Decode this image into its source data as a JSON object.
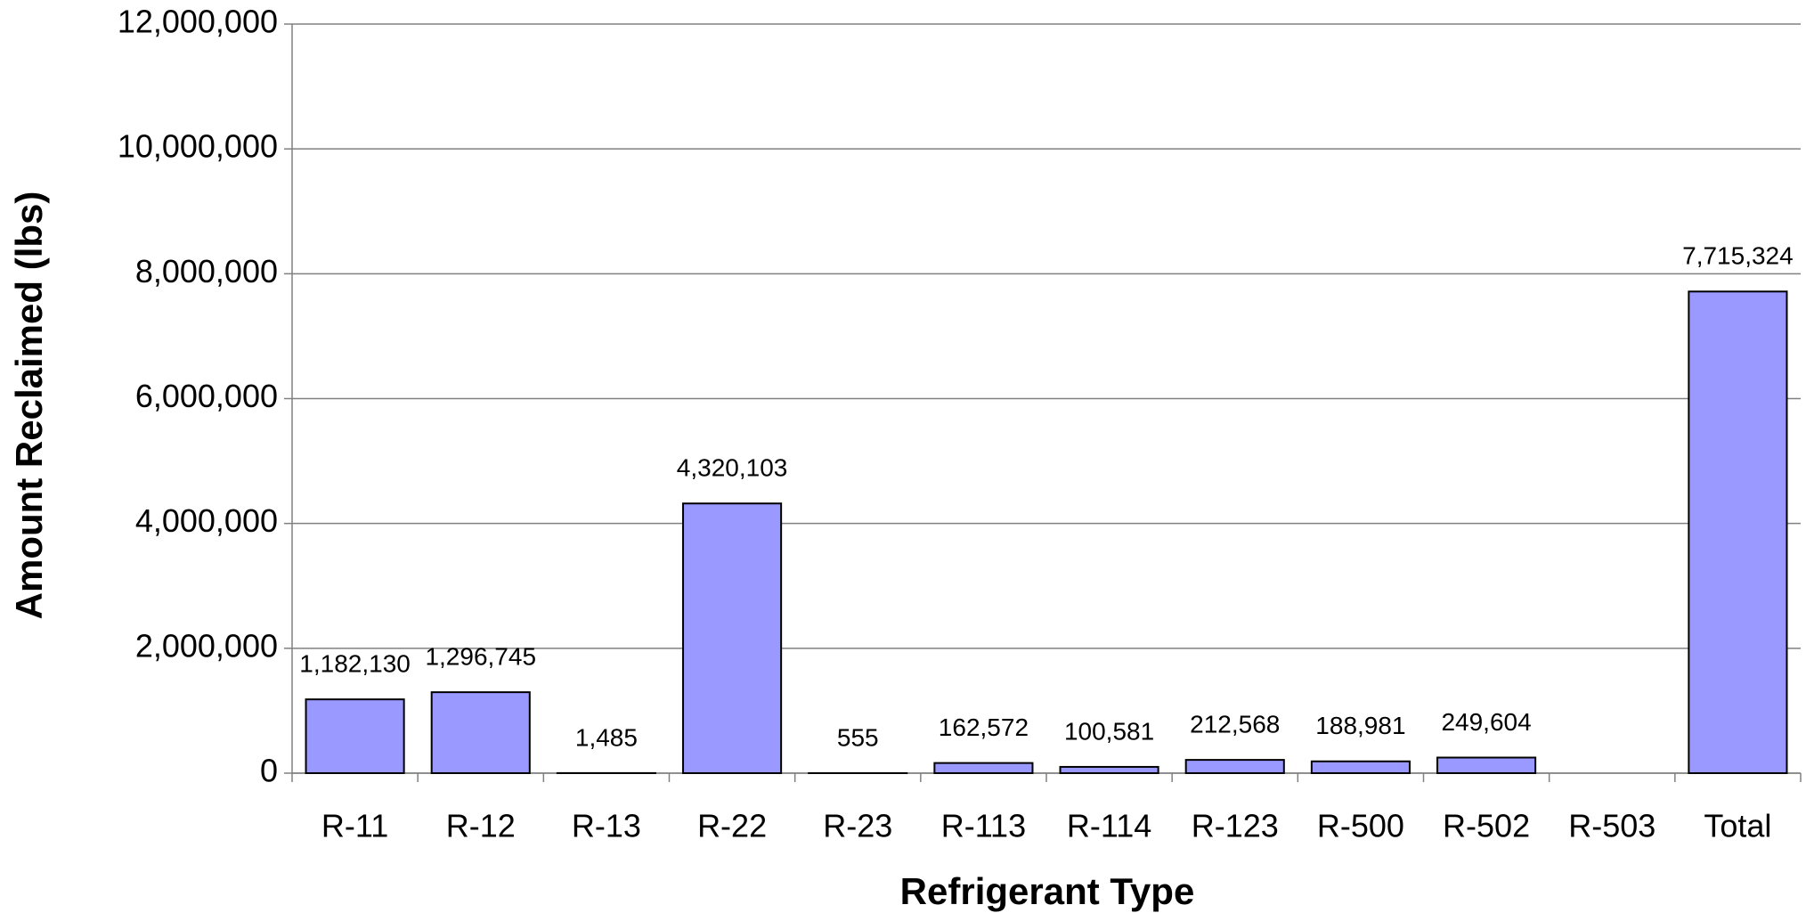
{
  "chart_data": {
    "type": "bar",
    "x_label": "Refrigerant Type",
    "y_label": "Amount Reclaimed (lbs)",
    "categories": [
      "R-11",
      "R-12",
      "R-13",
      "R-22",
      "R-23",
      "R-113",
      "R-114",
      "R-123",
      "R-500",
      "R-502",
      "R-503",
      "Total"
    ],
    "values": [
      1182130,
      1296745,
      1485,
      4320103,
      555,
      162572,
      100581,
      212568,
      188981,
      249604,
      null,
      7715324
    ],
    "value_labels": [
      "1,182,130",
      "1,296,745",
      "1,485",
      "4,320,103",
      "555",
      "162,572",
      "100,581",
      "212,568",
      "188,981",
      "249,604",
      null,
      "7,715,324"
    ],
    "color": "#9999ff",
    "ylim": [
      0,
      12000000
    ],
    "yticks": [
      0,
      {
        "value": 2000000,
        "label": "2,000,000"
      },
      {
        "value": 4000000,
        "label": "4,000,000"
      },
      {
        "value": 6000000,
        "label": "6,000,000"
      },
      {
        "value": 8000000,
        "label": "8,000,000"
      },
      {
        "value": 10000000,
        "label": "10,000,000"
      },
      {
        "value": 12000000,
        "label": "12,000,000"
      }
    ],
    "grid": true
  }
}
